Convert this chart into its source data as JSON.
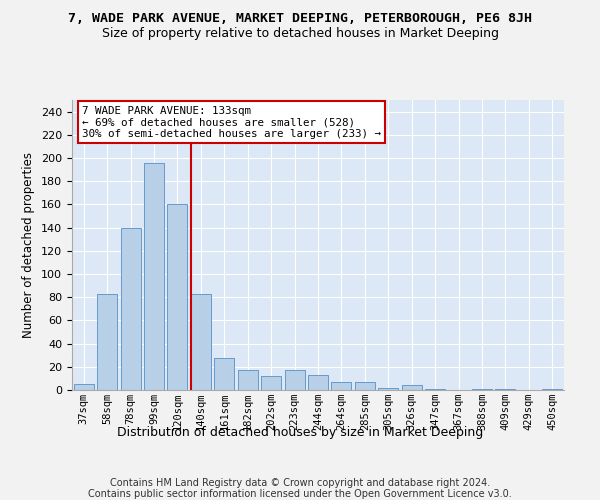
{
  "title": "7, WADE PARK AVENUE, MARKET DEEPING, PETERBOROUGH, PE6 8JH",
  "subtitle": "Size of property relative to detached houses in Market Deeping",
  "xlabel": "Distribution of detached houses by size in Market Deeping",
  "ylabel": "Number of detached properties",
  "categories": [
    "37sqm",
    "58sqm",
    "78sqm",
    "99sqm",
    "120sqm",
    "140sqm",
    "161sqm",
    "182sqm",
    "202sqm",
    "223sqm",
    "244sqm",
    "264sqm",
    "285sqm",
    "305sqm",
    "326sqm",
    "347sqm",
    "367sqm",
    "388sqm",
    "409sqm",
    "429sqm",
    "450sqm"
  ],
  "values": [
    5,
    83,
    140,
    196,
    160,
    83,
    28,
    17,
    12,
    17,
    13,
    7,
    7,
    2,
    4,
    1,
    0,
    1,
    1,
    0,
    1
  ],
  "bar_color": "#b8cfe8",
  "bar_edge_color": "#6699cc",
  "vline_color": "#cc0000",
  "vline_pos": 4.6,
  "annotation_text": "7 WADE PARK AVENUE: 133sqm\n← 69% of detached houses are smaller (528)\n30% of semi-detached houses are larger (233) →",
  "annotation_box_facecolor": "#ffffff",
  "annotation_box_edgecolor": "#cc0000",
  "fig_facecolor": "#f2f2f2",
  "ax_facecolor": "#dce8f5",
  "grid_color": "#ffffff",
  "footer1": "Contains HM Land Registry data © Crown copyright and database right 2024.",
  "footer2": "Contains public sector information licensed under the Open Government Licence v3.0.",
  "ylim": [
    0,
    250
  ],
  "yticks": [
    0,
    20,
    40,
    60,
    80,
    100,
    120,
    140,
    160,
    180,
    200,
    220,
    240
  ]
}
